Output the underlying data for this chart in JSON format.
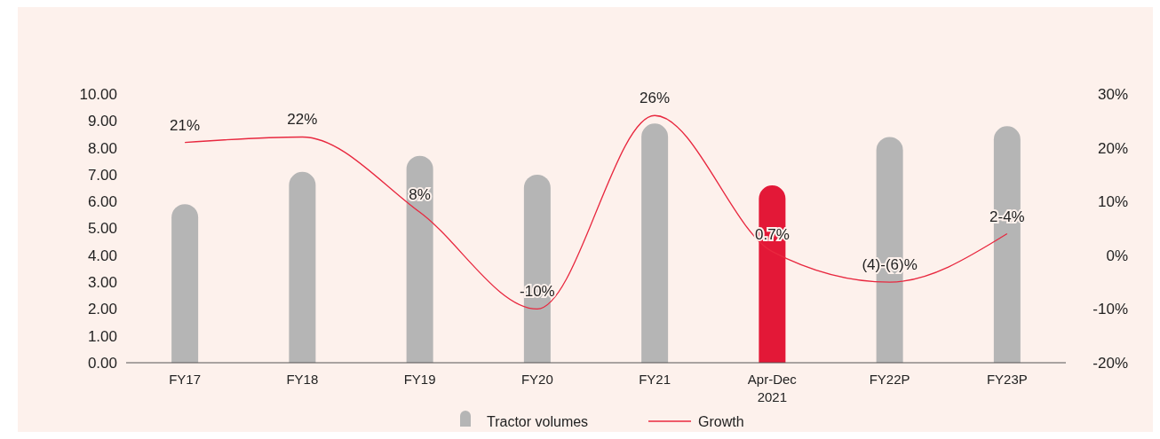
{
  "chart_data": {
    "type": "bar",
    "categories": [
      "FY17",
      "FY18",
      "FY19",
      "FY20",
      "FY21",
      "Apr-Dec 2021",
      "FY22P",
      "FY23P"
    ],
    "series": [
      {
        "name": "Tractor volumes",
        "color": "#b5b5b5",
        "colors": [
          "#b5b5b5",
          "#b5b5b5",
          "#b5b5b5",
          "#b5b5b5",
          "#b5b5b5",
          "#e31837",
          "#b5b5b5",
          "#b5b5b5"
        ],
        "values": [
          5.9,
          7.1,
          7.7,
          7.0,
          8.9,
          6.6,
          8.4,
          8.8
        ]
      },
      {
        "name": "Growth",
        "type": "line",
        "axis": "y2",
        "color": "#e8283f",
        "values": [
          21,
          22,
          8,
          -10,
          26,
          0.7,
          -5,
          4
        ],
        "value_labels": [
          "21%",
          "22%",
          "8%",
          "-10%",
          "26%",
          "0.7%",
          null,
          null
        ]
      }
    ],
    "annotations": [
      {
        "text": "(4)-(6)%",
        "x": "FY22P",
        "y": 3.0
      },
      {
        "text": "2-4%",
        "x": "FY23P",
        "y": 4.8
      }
    ],
    "ylim": [
      0,
      10
    ],
    "yticks": [
      {
        "value": 0,
        "label": "0.00"
      },
      {
        "value": 1,
        "label": "1.00"
      },
      {
        "value": 2,
        "label": "2.00"
      },
      {
        "value": 3,
        "label": "3.00"
      },
      {
        "value": 4,
        "label": "4.00"
      },
      {
        "value": 5,
        "label": "5.00"
      },
      {
        "value": 6,
        "label": "6.00"
      },
      {
        "value": 7,
        "label": "7.00"
      },
      {
        "value": 8,
        "label": "8.00"
      },
      {
        "value": 9,
        "label": "9.00"
      },
      {
        "value": 10,
        "label": "10.00"
      }
    ],
    "y2lim": [
      -20,
      30
    ],
    "y2ticks": [
      {
        "value": -20,
        "label": "-20%"
      },
      {
        "value": -10,
        "label": "-10%"
      },
      {
        "value": 0,
        "label": "0%"
      },
      {
        "value": 10,
        "label": "10%"
      },
      {
        "value": 20,
        "label": "20%"
      },
      {
        "value": 30,
        "label": "30%"
      }
    ],
    "legend": "bottom",
    "grid": false,
    "marker": "none",
    "line_style": "solid"
  }
}
